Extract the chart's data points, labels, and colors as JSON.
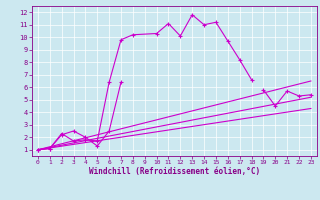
{
  "xlabel": "Windchill (Refroidissement éolien,°C)",
  "bg_color": "#cce8f0",
  "grid_color": "#ffffff",
  "line_color": "#cc00cc",
  "line1_x": [
    0,
    1,
    2,
    3,
    4,
    5,
    6,
    7,
    8,
    10,
    11,
    12,
    13,
    14,
    15,
    16,
    17,
    18
  ],
  "line1_y": [
    1.0,
    1.1,
    2.3,
    1.7,
    1.8,
    1.7,
    6.4,
    9.8,
    10.2,
    10.3,
    11.1,
    10.1,
    11.8,
    11.0,
    11.2,
    9.7,
    8.2,
    6.6
  ],
  "line2_x": [
    0,
    1,
    2,
    3,
    4,
    5,
    6,
    7
  ],
  "line2_y": [
    1.0,
    1.1,
    2.2,
    2.5,
    2.0,
    1.3,
    2.5,
    6.4
  ],
  "line3_x": [
    19,
    20,
    21,
    22,
    23
  ],
  "line3_y": [
    5.8,
    4.5,
    5.7,
    5.3,
    5.4
  ],
  "line4_x": [
    0,
    23
  ],
  "line4_y": [
    1.0,
    6.5
  ],
  "line5_x": [
    0,
    23
  ],
  "line5_y": [
    1.0,
    5.2
  ],
  "line6_x": [
    0,
    23
  ],
  "line6_y": [
    1.0,
    4.3
  ],
  "xlim": [
    -0.5,
    23.5
  ],
  "ylim": [
    0.5,
    12.5
  ],
  "xticks": [
    0,
    1,
    2,
    3,
    4,
    5,
    6,
    7,
    8,
    9,
    10,
    11,
    12,
    13,
    14,
    15,
    16,
    17,
    18,
    19,
    20,
    21,
    22,
    23
  ],
  "yticks": [
    1,
    2,
    3,
    4,
    5,
    6,
    7,
    8,
    9,
    10,
    11,
    12
  ],
  "xlabel_fontsize": 5.5,
  "tick_fontsize": 4.5,
  "tick_color": "#880088",
  "spine_color": "#880088"
}
